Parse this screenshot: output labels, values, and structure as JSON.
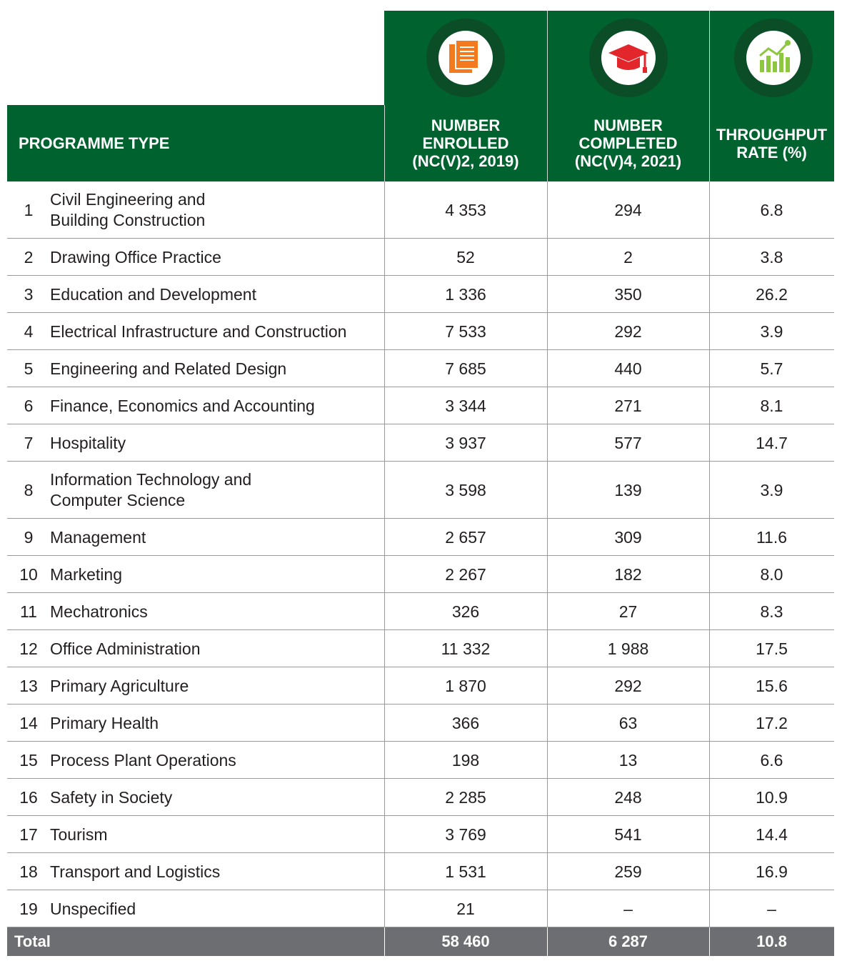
{
  "header": {
    "columns": [
      [
        "PROGRAMME TYPE"
      ],
      [
        "NUMBER",
        "ENROLLED",
        "(NC(V)2, 2019)"
      ],
      [
        "NUMBER",
        "COMPLETED",
        "(NC(V)4, 2021)"
      ],
      [
        "THROUGHPUT",
        "RATE (%)"
      ]
    ]
  },
  "table": {
    "rows": [
      {
        "number": "1",
        "name": [
          "Civil Engineering and",
          "Building Construction"
        ],
        "enrolled": "4 353",
        "completed": "294",
        "rate": "6.8"
      },
      {
        "number": "2",
        "name": [
          "Drawing Office Practice"
        ],
        "enrolled": "52",
        "completed": "2",
        "rate": "3.8"
      },
      {
        "number": "3",
        "name": [
          "Education and Development"
        ],
        "enrolled": "1 336",
        "completed": "350",
        "rate": "26.2"
      },
      {
        "number": "4",
        "name": [
          "Electrical Infrastructure and Construction"
        ],
        "enrolled": "7 533",
        "completed": "292",
        "rate": "3.9"
      },
      {
        "number": "5",
        "name": [
          "Engineering and Related Design"
        ],
        "enrolled": "7 685",
        "completed": "440",
        "rate": "5.7"
      },
      {
        "number": "6",
        "name": [
          "Finance, Economics and Accounting"
        ],
        "enrolled": "3 344",
        "completed": "271",
        "rate": "8.1"
      },
      {
        "number": "7",
        "name": [
          "Hospitality"
        ],
        "enrolled": "3 937",
        "completed": "577",
        "rate": "14.7"
      },
      {
        "number": "8",
        "name": [
          "Information Technology and",
          "Computer Science"
        ],
        "enrolled": "3 598",
        "completed": "139",
        "rate": "3.9"
      },
      {
        "number": "9",
        "name": [
          "Management"
        ],
        "enrolled": "2 657",
        "completed": "309",
        "rate": "11.6"
      },
      {
        "number": "10",
        "name": [
          "Marketing"
        ],
        "enrolled": "2 267",
        "completed": "182",
        "rate": "8.0"
      },
      {
        "number": "11",
        "name": [
          "Mechatronics"
        ],
        "enrolled": "326",
        "completed": "27",
        "rate": "8.3"
      },
      {
        "number": "12",
        "name": [
          "Office Administration"
        ],
        "enrolled": "11 332",
        "completed": "1 988",
        "rate": "17.5"
      },
      {
        "number": "13",
        "name": [
          "Primary Agriculture"
        ],
        "enrolled": "1 870",
        "completed": "292",
        "rate": "15.6"
      },
      {
        "number": "14",
        "name": [
          "Primary Health"
        ],
        "enrolled": "366",
        "completed": "63",
        "rate": "17.2"
      },
      {
        "number": "15",
        "name": [
          "Process Plant Operations"
        ],
        "enrolled": "198",
        "completed": "13",
        "rate": "6.6"
      },
      {
        "number": "16",
        "name": [
          "Safety in Society"
        ],
        "enrolled": "2 285",
        "completed": "248",
        "rate": "10.9"
      },
      {
        "number": "17",
        "name": [
          "Tourism"
        ],
        "enrolled": "3 769",
        "completed": "541",
        "rate": "14.4"
      },
      {
        "number": "18",
        "name": [
          "Transport and Logistics"
        ],
        "enrolled": "1 531",
        "completed": "259",
        "rate": "16.9"
      },
      {
        "number": "19",
        "name": [
          "Unspecified"
        ],
        "enrolled": "21",
        "completed": "–",
        "rate": "–"
      }
    ]
  },
  "total": {
    "label": "Total",
    "enrolled": "58 460",
    "completed": "6 287",
    "rate": "10.8"
  }
}
